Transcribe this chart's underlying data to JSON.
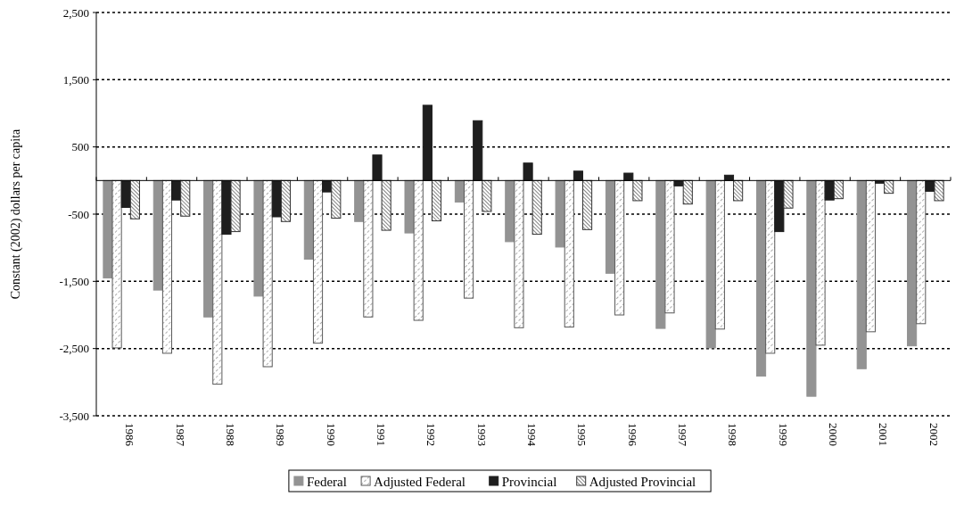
{
  "chart_data": {
    "type": "bar",
    "ylabel": "Constant (2002) dollars per capita",
    "categories": [
      "1986",
      "1987",
      "1988",
      "1989",
      "1990",
      "1991",
      "1992",
      "1993",
      "1994",
      "1995",
      "1996",
      "1997",
      "1998",
      "1999",
      "2000",
      "2001",
      "2002"
    ],
    "series": [
      {
        "name": "Federal",
        "color": "#939393",
        "values": [
          -1450,
          -1630,
          -2030,
          -1720,
          -1170,
          -610,
          -780,
          -320,
          -910,
          -990,
          -1380,
          -2200,
          -2490,
          -2910,
          -3210,
          -2800,
          -2460
        ]
      },
      {
        "name": "Adjusted Federal",
        "color": "#595959",
        "values": [
          -2490,
          -2570,
          -3030,
          -2770,
          -2420,
          -2030,
          -2080,
          -1750,
          -2190,
          -2180,
          -2000,
          -1970,
          -2210,
          -2570,
          -2450,
          -2250,
          -2130
        ]
      },
      {
        "name": "Provincial",
        "color": "#1e1e1e",
        "values": [
          -400,
          -290,
          -800,
          -540,
          -170,
          380,
          1120,
          890,
          260,
          140,
          110,
          -80,
          80,
          -760,
          -290,
          -40,
          -160
        ]
      },
      {
        "name": "Adjusted Provincial",
        "color": "#333333",
        "values": [
          -570,
          -530,
          -760,
          -610,
          -560,
          -740,
          -600,
          -460,
          -800,
          -730,
          -300,
          -350,
          -300,
          -410,
          -270,
          -190,
          -300
        ]
      }
    ],
    "ylim": [
      -3500,
      2500
    ],
    "yticks": [
      {
        "value": -3500,
        "label": "-3,500"
      },
      {
        "value": -2500,
        "label": "-2,500"
      },
      {
        "value": -1500,
        "label": "-1,500"
      },
      -500,
      500,
      {
        "value": 1500,
        "label": "1,500"
      },
      {
        "value": 2500,
        "label": "2,500"
      }
    ],
    "grid": "y",
    "legend": "bottom"
  }
}
